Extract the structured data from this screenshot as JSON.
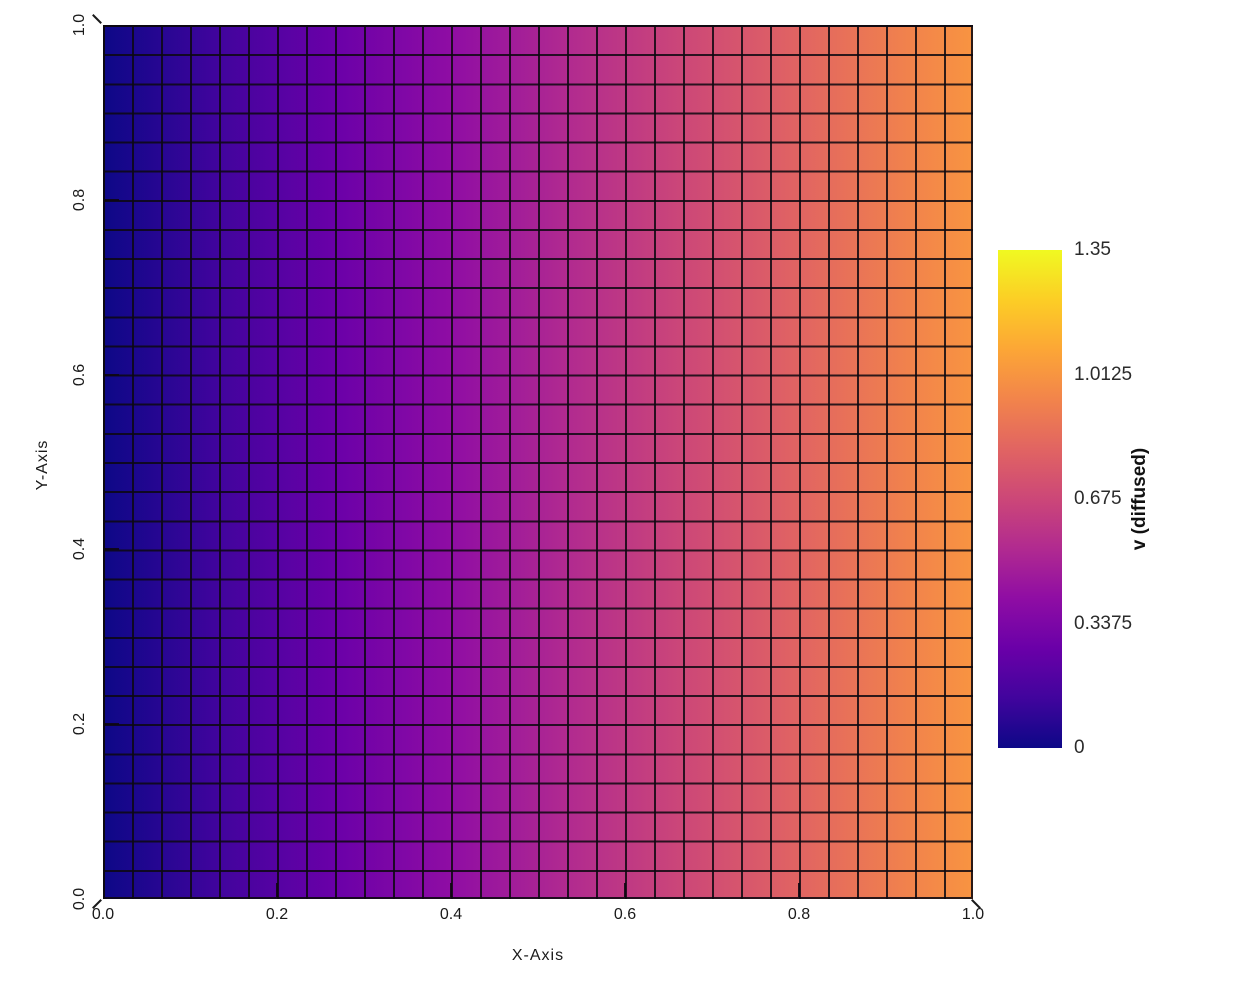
{
  "figure": {
    "background": "#ffffff",
    "text_color": "#1a1a1a",
    "grid_line_color": "rgba(12,8,16,0.88)"
  },
  "chart_data": {
    "type": "heatmap",
    "title": "",
    "xlabel": "X-Axis",
    "ylabel": "Y-Axis",
    "colorbar_label": "v (diffused)",
    "colorscale": "plasma",
    "zmin": 0,
    "zmax": 1.35,
    "xlim": [
      0,
      1
    ],
    "ylim": [
      0,
      1
    ],
    "x_tick_labels": [
      "0.0",
      "0.2",
      "0.4",
      "0.6",
      "0.8",
      "1.0"
    ],
    "y_tick_labels": [
      "0.0",
      "0.2",
      "0.4",
      "0.6",
      "0.8",
      "1.0"
    ],
    "x_tick_values": [
      0,
      0.2,
      0.4,
      0.6,
      0.8,
      1.0
    ],
    "y_tick_values": [
      0,
      0.2,
      0.4,
      0.6,
      0.8,
      1.0
    ],
    "colorbar_tick_labels": [
      "0",
      "0.3375",
      "0.675",
      "1.0125",
      "1.35"
    ],
    "colorbar_tick_values": [
      0,
      0.3375,
      0.675,
      1.0125,
      1.35
    ],
    "grid": {
      "ncols": 30,
      "nrows": 30,
      "cell_borders": true
    },
    "pattern": "v(x,y) increases linearly with x from 0 at the left edge to ~1.0125 at the right edge; uniform in y",
    "uniform_in_y": true,
    "row_values": [
      0,
      0.0349,
      0.0698,
      0.1047,
      0.1396,
      0.1746,
      0.2095,
      0.2444,
      0.2793,
      0.3142,
      0.3491,
      0.3841,
      0.419,
      0.4539,
      0.4888,
      0.5237,
      0.5586,
      0.5935,
      0.6285,
      0.6634,
      0.6983,
      0.7332,
      0.7681,
      0.803,
      0.838,
      0.8729,
      0.9078,
      0.9427,
      0.9776,
      1.0125
    ],
    "colorbar_gradient_bottom_to_top": [
      "#0d0887",
      "#41049d",
      "#6a00a8",
      "#8f0da4",
      "#b12a90",
      "#cc4778",
      "#e16462",
      "#f2844b",
      "#fca636",
      "#fcce25",
      "#f0f921"
    ],
    "heatmap_gradient_left_to_right": [
      "#0d0887",
      "#41049d",
      "#6a00a8",
      "#8f0da4",
      "#b12a90",
      "#cc4778",
      "#e16462",
      "#f2844b",
      "#f89441"
    ],
    "heatmap_max_fraction_of_scale": 0.75
  }
}
